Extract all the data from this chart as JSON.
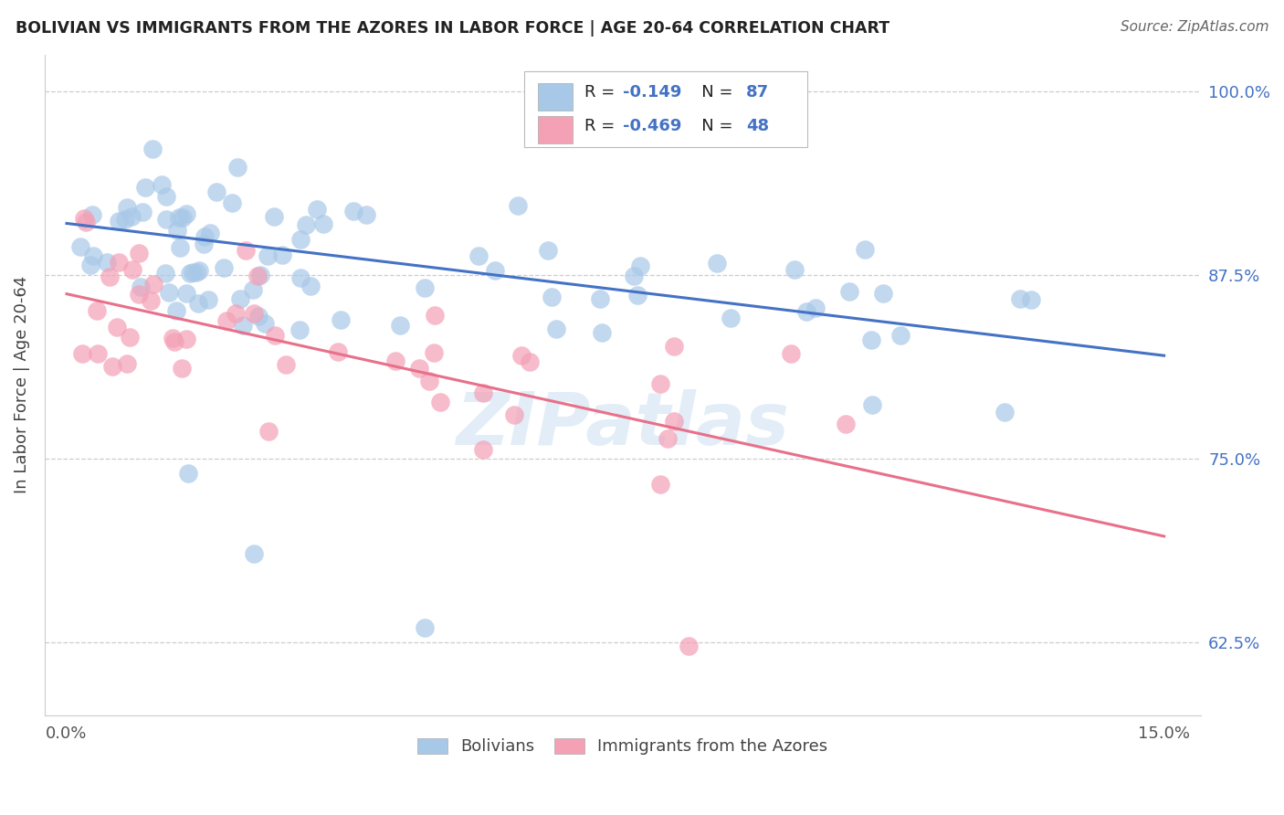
{
  "title": "BOLIVIAN VS IMMIGRANTS FROM THE AZORES IN LABOR FORCE | AGE 20-64 CORRELATION CHART",
  "source": "Source: ZipAtlas.com",
  "ylabel": "In Labor Force | Age 20-64",
  "ytick_labels": [
    "62.5%",
    "75.0%",
    "87.5%",
    "100.0%"
  ],
  "ytick_values": [
    0.625,
    0.75,
    0.875,
    1.0
  ],
  "xlim": [
    0.0,
    0.15
  ],
  "ylim": [
    0.575,
    1.025
  ],
  "blue_color": "#A8C8E8",
  "pink_color": "#F4A0B5",
  "blue_line_color": "#4472C4",
  "pink_line_color": "#E8708A",
  "legend_label_blue": "Bolivians",
  "legend_label_pink": "Immigrants from the Azores",
  "watermark": "ZIPatlas",
  "blue_intercept": 0.91,
  "blue_slope": -0.6,
  "pink_intercept": 0.862,
  "pink_slope": -1.1
}
